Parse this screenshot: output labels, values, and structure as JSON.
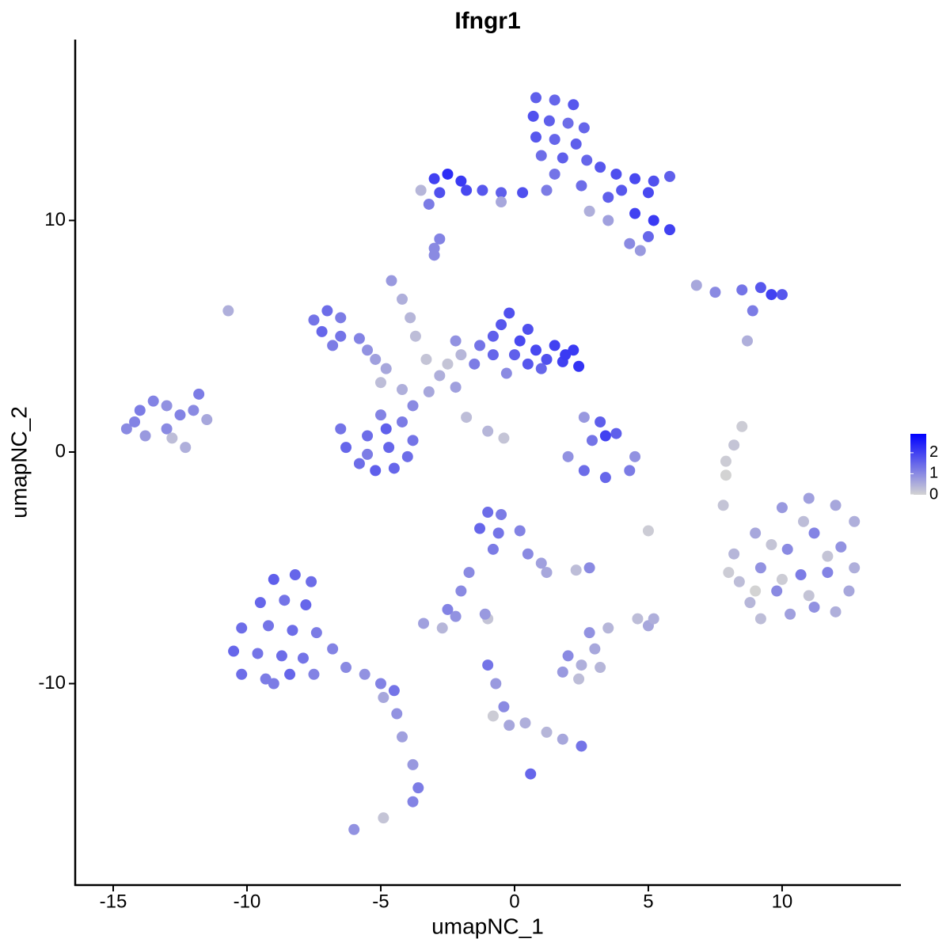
{
  "chart_data": {
    "type": "scatter",
    "title": "Ifngr1",
    "x_label": "umapNC_1",
    "y_label": "umapNC_2",
    "xlim": [
      -16.42,
      14.44
    ],
    "ylim": [
      -18.7,
      17.81
    ],
    "xticks": [
      -15,
      -10,
      -5,
      0,
      5,
      10
    ],
    "yticks": [
      -10,
      0,
      10
    ],
    "color_scale": {
      "low": "#d3d3d3",
      "high": "#0000ff",
      "lim": [
        0,
        2.9
      ],
      "ticks": [
        0,
        1,
        2
      ]
    },
    "x": [
      0.8,
      1.5,
      2.2,
      0.7,
      1.3,
      2.0,
      2.6,
      0.8,
      1.5,
      2.3,
      1.0,
      1.8,
      2.7,
      3.2,
      3.8,
      4.5,
      5.2,
      5.8,
      4.0,
      5.0,
      1.5,
      1.2,
      2.5,
      3.5,
      4.5,
      5.2,
      5.8,
      5.0,
      4.3,
      4.7,
      -3.0,
      -2.5,
      -2.0,
      -2.8,
      -1.8,
      -1.2,
      -0.5,
      0.3,
      -3.2,
      -3.5,
      -0.5,
      2.8,
      3.5,
      -3.0,
      -2.8,
      6.8,
      7.5,
      8.5,
      9.2,
      9.6,
      10.0,
      8.9,
      8.7,
      -7.5,
      -7.0,
      -6.5,
      -7.2,
      -6.5,
      -5.8,
      -5.5,
      -6.8,
      -5.2,
      -4.8,
      -4.6,
      -4.2,
      -3.9,
      -3.7,
      -3.3,
      -2.8,
      -2.2,
      -3.2,
      -1.8,
      -1.0,
      -2.5,
      -2.0,
      -3.8,
      -4.2,
      -0.4,
      -5.0,
      -0.8,
      -0.5,
      -0.2,
      -0.8,
      -1.3,
      0.2,
      0.5,
      0.0,
      0.8,
      1.5,
      2.2,
      2.4,
      1.8,
      1.2,
      0.5,
      -1.5,
      -0.3,
      1.0,
      -2.2,
      1.9,
      -6.5,
      -6.3,
      -5.8,
      -5.2,
      -4.5,
      -4.0,
      -3.8,
      -4.2,
      -5.0,
      -5.5,
      -4.7,
      -5.5,
      -4.8,
      -14.5,
      -14.0,
      -13.5,
      -13.0,
      -13.8,
      -13.0,
      -12.5,
      -12.0,
      -11.8,
      -12.3,
      -12.8,
      -11.5,
      -14.2,
      -10.7,
      -3.0,
      3.2,
      3.4,
      2.9,
      3.8,
      2.0,
      2.6,
      3.4,
      4.3,
      4.5,
      2.6,
      5.0,
      8.5,
      8.2,
      7.9,
      7.9,
      7.8,
      8.2,
      9.0,
      10.0,
      11.0,
      12.0,
      12.7,
      8.4,
      9.2,
      10.2,
      11.2,
      12.2,
      12.7,
      8.8,
      9.8,
      10.7,
      11.7,
      12.5,
      9.2,
      10.3,
      11.2,
      12.0,
      9.6,
      10.8,
      11.7,
      10.0,
      11.0,
      9.0,
      8.0,
      -9.0,
      -8.2,
      -7.6,
      -9.5,
      -8.6,
      -7.8,
      -10.2,
      -9.2,
      -8.3,
      -7.4,
      -10.5,
      -9.6,
      -8.7,
      -7.9,
      -6.8,
      -10.2,
      -9.3,
      -8.4,
      -7.5,
      -6.3,
      -5.6,
      -5.0,
      -4.5,
      -4.9,
      -4.4,
      -4.2,
      -3.8,
      -3.6,
      -3.8,
      -6.0,
      -4.9,
      -9.0,
      -1.0,
      -0.5,
      -1.3,
      -0.6,
      0.2,
      -0.8,
      0.5,
      1.0,
      1.2,
      -1.7,
      -2.0,
      -2.5,
      -2.2,
      -1.0,
      -2.7,
      2.8,
      2.3,
      5.0,
      5.2,
      4.6,
      1.8,
      2.5,
      3.2,
      2.0,
      3.0,
      2.8,
      3.5,
      2.4,
      -1.0,
      -0.7,
      -0.4,
      -0.2,
      0.4,
      1.2,
      1.8,
      2.5,
      0.6,
      -0.8,
      -3.4,
      -1.1
    ],
    "y": [
      15.3,
      15.2,
      15.0,
      14.5,
      14.3,
      14.2,
      14.0,
      13.6,
      13.5,
      13.3,
      12.8,
      12.7,
      12.6,
      12.3,
      12.0,
      11.8,
      11.7,
      11.9,
      11.3,
      11.2,
      12.0,
      11.3,
      11.5,
      11.0,
      10.3,
      10.0,
      9.6,
      9.3,
      9.0,
      8.7,
      11.8,
      12.0,
      11.7,
      11.2,
      11.3,
      11.3,
      11.2,
      11.2,
      10.7,
      11.3,
      10.8,
      10.4,
      10.0,
      8.8,
      9.2,
      7.2,
      6.9,
      7.0,
      7.1,
      6.8,
      6.8,
      6.1,
      4.8,
      5.7,
      6.1,
      5.8,
      5.2,
      5.0,
      4.9,
      4.4,
      4.6,
      4.0,
      3.6,
      7.4,
      6.6,
      5.8,
      5.0,
      4.0,
      3.3,
      2.8,
      2.6,
      1.5,
      0.9,
      3.8,
      4.2,
      2.0,
      2.7,
      0.6,
      3.0,
      5.0,
      5.5,
      6.0,
      4.2,
      4.6,
      4.8,
      5.3,
      4.2,
      4.4,
      4.6,
      4.4,
      3.7,
      3.9,
      4.0,
      3.8,
      3.8,
      3.4,
      3.6,
      4.8,
      4.2,
      1.0,
      0.2,
      -0.5,
      -0.8,
      -0.7,
      -0.2,
      0.5,
      1.3,
      1.6,
      0.7,
      0.2,
      -0.1,
      1.0,
      1.0,
      1.8,
      2.2,
      2.0,
      0.7,
      1.0,
      1.6,
      1.8,
      2.5,
      0.2,
      0.6,
      1.4,
      1.3,
      6.1,
      8.5,
      1.3,
      0.7,
      0.5,
      0.8,
      -0.2,
      -0.8,
      -1.1,
      -0.8,
      -0.2,
      1.5,
      -3.4,
      1.1,
      0.3,
      -0.4,
      -1.0,
      -2.3,
      -4.4,
      -3.5,
      -2.4,
      -2.0,
      -2.3,
      -3.0,
      -5.6,
      -5.0,
      -4.2,
      -3.5,
      -4.1,
      -5.0,
      -6.5,
      -6.0,
      -5.3,
      -5.2,
      -6.0,
      -7.2,
      -7.0,
      -6.7,
      -6.9,
      -4.0,
      -3.0,
      -4.5,
      -5.5,
      -6.2,
      -6.0,
      -5.2,
      -5.5,
      -5.3,
      -5.6,
      -6.5,
      -6.4,
      -6.6,
      -7.6,
      -7.5,
      -7.7,
      -7.8,
      -8.6,
      -8.7,
      -8.8,
      -8.9,
      -8.5,
      -9.6,
      -9.8,
      -9.6,
      -9.6,
      -9.3,
      -9.6,
      -10.0,
      -10.3,
      -10.6,
      -11.3,
      -12.3,
      -13.5,
      -14.5,
      -15.1,
      -16.3,
      -15.8,
      -10.0,
      -2.6,
      -2.7,
      -3.3,
      -3.5,
      -3.4,
      -4.2,
      -4.4,
      -4.8,
      -5.2,
      -5.2,
      -6.0,
      -6.8,
      -7.1,
      -7.2,
      -7.6,
      -5.0,
      -5.1,
      -7.5,
      -7.2,
      -7.2,
      -9.5,
      -9.2,
      -9.3,
      -8.8,
      -8.5,
      -7.8,
      -7.6,
      -9.8,
      -9.2,
      -10.0,
      -11.0,
      -11.8,
      -11.7,
      -12.1,
      -12.4,
      -12.7,
      -13.9,
      -11.4,
      -7.4,
      -7.0
    ],
    "values": [
      1.6,
      1.5,
      1.7,
      1.8,
      1.6,
      1.4,
      1.5,
      1.7,
      1.5,
      1.6,
      1.4,
      1.6,
      1.5,
      1.7,
      1.8,
      1.9,
      1.8,
      1.6,
      1.7,
      1.9,
      1.3,
      1.2,
      1.4,
      1.6,
      2.0,
      2.1,
      2.0,
      1.5,
      1.0,
      0.8,
      2.0,
      2.3,
      2.1,
      1.8,
      1.9,
      1.7,
      1.6,
      1.8,
      1.2,
      0.4,
      0.6,
      0.5,
      0.7,
      1.0,
      1.1,
      0.6,
      1.0,
      1.3,
      1.7,
      2.0,
      1.7,
      1.2,
      0.5,
      1.3,
      1.4,
      1.2,
      1.5,
      1.3,
      1.1,
      0.9,
      1.2,
      0.7,
      0.6,
      0.8,
      0.5,
      0.4,
      0.3,
      0.2,
      0.5,
      0.7,
      0.6,
      0.3,
      0.4,
      0.2,
      0.4,
      1.0,
      0.5,
      0.2,
      0.3,
      1.6,
      1.7,
      1.8,
      1.5,
      1.3,
      1.9,
      1.8,
      1.6,
      1.9,
      2.0,
      2.1,
      2.2,
      2.0,
      1.8,
      1.7,
      1.2,
      1.0,
      1.5,
      0.9,
      2.1,
      1.3,
      1.5,
      1.4,
      1.6,
      1.5,
      1.4,
      1.3,
      1.2,
      1.1,
      1.4,
      1.5,
      1.2,
      1.6,
      1.0,
      1.2,
      1.1,
      0.9,
      0.8,
      1.0,
      1.1,
      1.0,
      1.2,
      0.5,
      0.3,
      0.6,
      1.1,
      0.5,
      1.0,
      1.6,
      2.0,
      1.3,
      1.6,
      0.9,
      1.4,
      1.5,
      1.2,
      0.9,
      0.8,
      0.1,
      0.1,
      0.2,
      0.1,
      0.0,
      0.2,
      0.4,
      0.6,
      0.8,
      0.7,
      0.6,
      0.5,
      0.3,
      0.9,
      1.0,
      1.1,
      0.9,
      0.5,
      0.4,
      1.0,
      1.2,
      1.1,
      0.6,
      0.3,
      0.7,
      0.9,
      0.5,
      0.2,
      0.3,
      0.2,
      0.1,
      0.2,
      0.0,
      0.1,
      1.6,
      1.5,
      1.4,
      1.5,
      1.3,
      1.5,
      1.4,
      1.3,
      1.4,
      1.2,
      1.5,
      1.3,
      1.4,
      1.3,
      1.1,
      1.4,
      1.2,
      1.5,
      1.1,
      1.0,
      0.9,
      1.1,
      1.3,
      0.6,
      0.9,
      0.7,
      0.8,
      1.2,
      1.1,
      0.9,
      0.2,
      1.2,
      1.4,
      1.2,
      1.5,
      1.3,
      1.1,
      1.2,
      1.0,
      0.7,
      0.6,
      1.0,
      1.0,
      1.1,
      0.9,
      0.2,
      0.4,
      1.0,
      0.3,
      0.6,
      0.5,
      0.3,
      0.8,
      0.5,
      0.4,
      1.0,
      0.6,
      0.9,
      0.4,
      0.3,
      1.3,
      0.8,
      1.0,
      0.6,
      0.5,
      0.4,
      0.6,
      1.3,
      1.5,
      0.1,
      0.7,
      0.8
    ]
  }
}
